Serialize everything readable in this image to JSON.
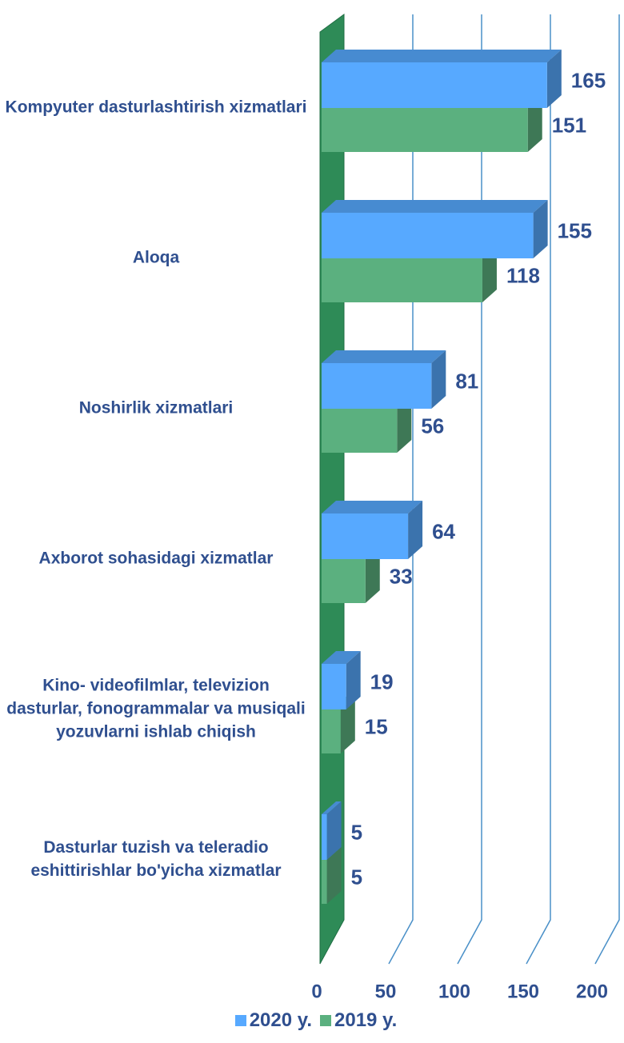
{
  "chart_data": {
    "type": "bar",
    "orientation": "horizontal",
    "categories": [
      "Kompyuter dasturlashtirish xizmatlari",
      "Aloqa",
      "Noshirlik xizmatlari",
      "Axborot sohasidagi xizmatlar",
      "Kino- videofilmlar, televizion dasturlar, fonogrammalar va musiqali yozuvlarni ishlab chiqish",
      "Dasturlar tuzish va teleradio eshittirishlar bo'yicha xizmatlar"
    ],
    "series": [
      {
        "name": "2020 y.",
        "color": "#57a9ff",
        "values": [
          165,
          155,
          81,
          64,
          19,
          5
        ]
      },
      {
        "name": "2019 y.",
        "color": "#5bb07f",
        "values": [
          151,
          118,
          56,
          33,
          15,
          5
        ]
      }
    ],
    "xlim": [
      0,
      200
    ],
    "xticks": [
      0,
      50,
      100,
      150,
      200
    ],
    "grid": true,
    "legend": "bottom"
  }
}
